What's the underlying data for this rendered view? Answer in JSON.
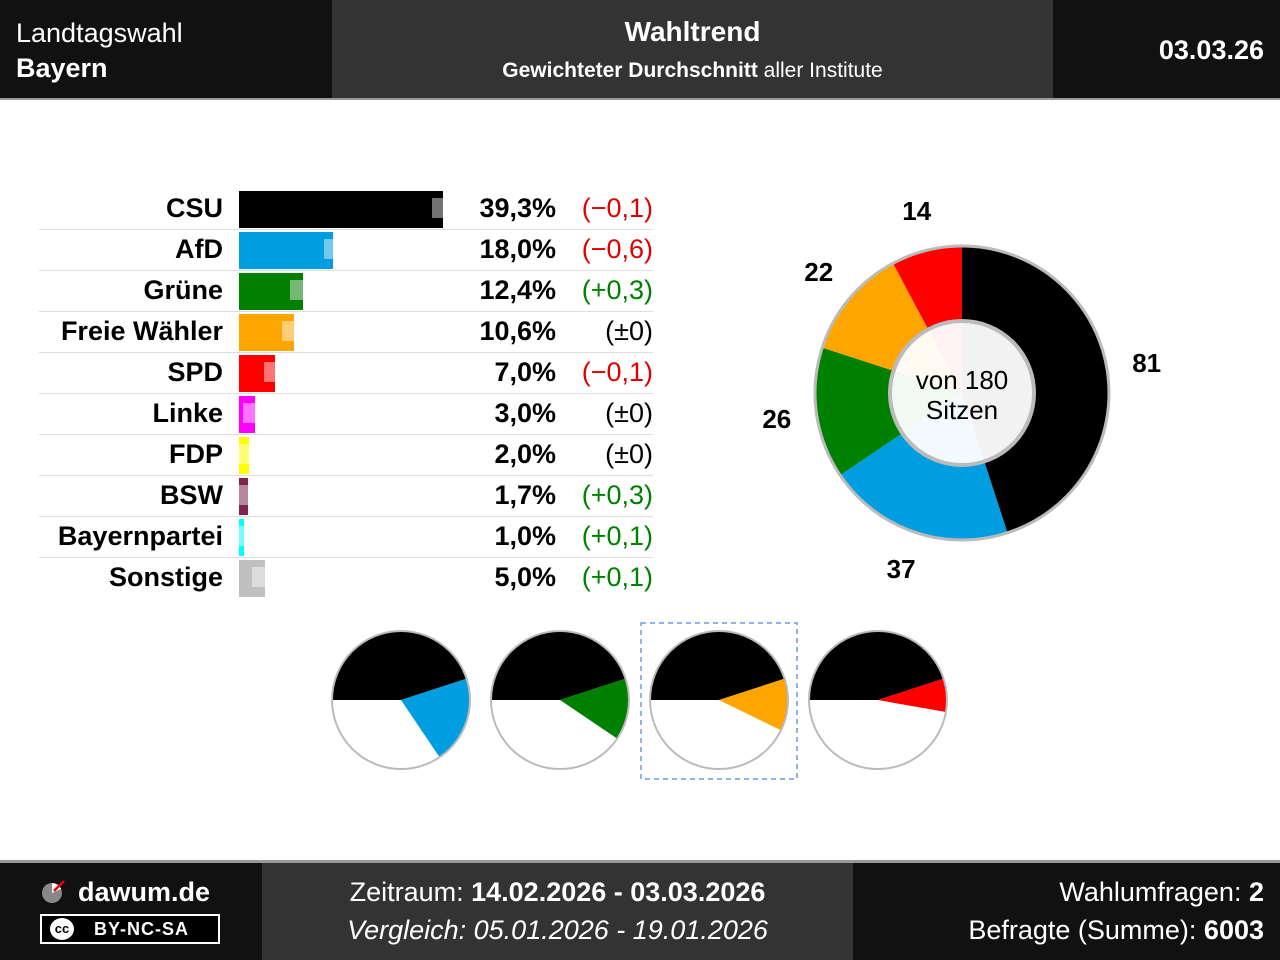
{
  "header": {
    "left_line1": "Landtagswahl",
    "left_line2": "Bayern",
    "title": "Wahltrend",
    "subtitle_bold": "Gewichteter Durchschnitt",
    "subtitle_rest": " aller Institute",
    "date": "03.03.26"
  },
  "chart_data": [
    {
      "type": "bar",
      "orientation": "horizontal",
      "categories": [
        "CSU",
        "AfD",
        "Grüne",
        "Freie Wähler",
        "SPD",
        "Linke",
        "FDP",
        "BSW",
        "Bayernpartei",
        "Sonstige"
      ],
      "values": [
        39.3,
        18.0,
        12.4,
        10.6,
        7.0,
        3.0,
        2.0,
        1.7,
        1.0,
        5.0
      ],
      "previous_values": [
        39.4,
        18.6,
        12.1,
        10.6,
        7.1,
        3.0,
        2.0,
        1.4,
        0.9,
        4.9
      ],
      "value_labels": [
        "39,3%",
        "18,0%",
        "12,4%",
        "10,6%",
        "7,0%",
        "3,0%",
        "2,0%",
        "1,7%",
        "1,0%",
        "5,0%"
      ],
      "change_labels": [
        "(−0,1)",
        "(−0,6)",
        "(+0,3)",
        "(±0)",
        "(−0,1)",
        "(±0)",
        "(±0)",
        "(+0,3)",
        "(+0,1)",
        "(+0,1)"
      ],
      "change_colors": [
        "#e00000",
        "#e00000",
        "#008000",
        "#000000",
        "#e00000",
        "#000000",
        "#000000",
        "#008000",
        "#008000",
        "#008000"
      ],
      "colors": [
        "#000000",
        "#009ee0",
        "#008000",
        "#ffa500",
        "#ff0000",
        "#ff00ff",
        "#ffff00",
        "#7d254f",
        "#00ffff",
        "#c0c0c0"
      ]
    },
    {
      "type": "pie",
      "categories": [
        "CSU",
        "AfD",
        "Grüne",
        "Freie Wähler",
        "SPD"
      ],
      "values": [
        81,
        37,
        26,
        22,
        14
      ],
      "colors": [
        "#000000",
        "#009ee0",
        "#008000",
        "#ffa500",
        "#ff0000"
      ],
      "center_line1": "von 180",
      "center_line2": "Sitzen"
    },
    {
      "type": "pie",
      "description_free": true,
      "charts": [
        {
          "values": [
            81,
            37
          ],
          "colors": [
            "#000000",
            "#009ee0"
          ],
          "highlighted": false
        },
        {
          "values": [
            81,
            26
          ],
          "colors": [
            "#000000",
            "#008000"
          ],
          "highlighted": false
        },
        {
          "values": [
            81,
            22
          ],
          "colors": [
            "#000000",
            "#ffa500"
          ],
          "highlighted": true
        },
        {
          "values": [
            81,
            14
          ],
          "colors": [
            "#000000",
            "#ff0000"
          ],
          "highlighted": false
        }
      ],
      "total": 180
    }
  ],
  "footer": {
    "brand": "dawum.de",
    "license_cc": "cc",
    "license": "BY-NC-SA",
    "zeitraum_label": "Zeitraum: ",
    "zeitraum": "14.02.2026 - 03.03.2026",
    "vergleich": "Vergleich: 05.01.2026 - 19.01.2026",
    "umfragen_label": "Wahlumfragen: ",
    "umfragen": "2",
    "befragte_label": "Befragte (Summe): ",
    "befragte": "6003"
  }
}
